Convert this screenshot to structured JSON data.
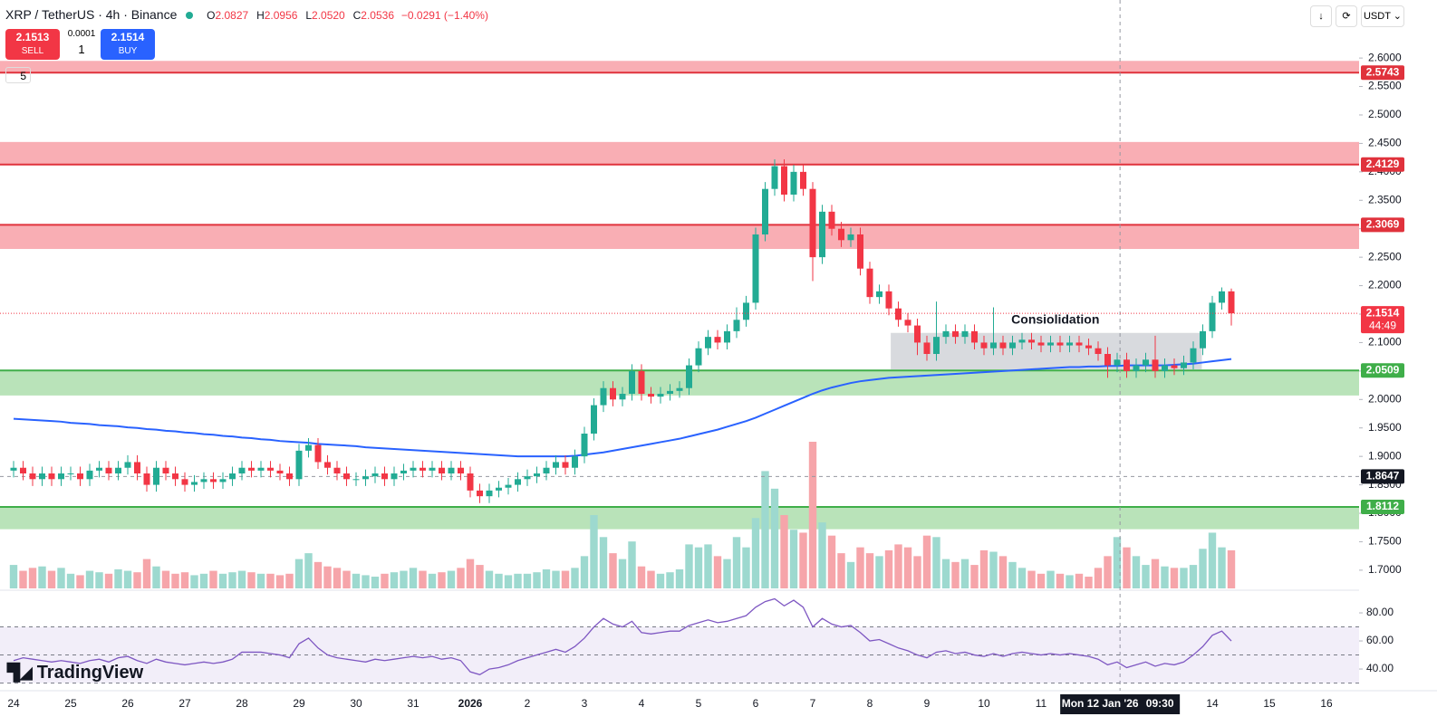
{
  "chart_data": {
    "type": "candlestick",
    "header": {
      "symbol": "XRP / TetherUS · 4h · Binance",
      "o_label": "O",
      "open": "2.0827",
      "h_label": "H",
      "high": "2.0956",
      "l_label": "L",
      "low": "2.0520",
      "c_label": "C",
      "close": "2.0536",
      "change": "−0.0291 (−1.40%)"
    },
    "trade": {
      "sell_price": "2.1513",
      "sell": "SELL",
      "step": "0.0001",
      "qty": "1",
      "buy_price": "2.1514",
      "buy": "BUY"
    },
    "indicators_collapsed": "5",
    "currency": "USDT",
    "brand": "TradingView",
    "up_color": "#22ab94",
    "down_color": "#f23645",
    "up_volume_color": "#9dd9cf",
    "down_volume_color": "#f6a5aa",
    "ma_color": "#2962ff",
    "rsi_color": "#7e57c2",
    "x_labels": [
      "24",
      "25",
      "26",
      "27",
      "28",
      "29",
      "30",
      "31",
      "2026",
      "2",
      "3",
      "4",
      "5",
      "6",
      "7",
      "8",
      "9",
      "10",
      "11",
      null,
      null,
      "14",
      "15",
      "16"
    ],
    "ylim": [
      1.668,
      2.702
    ],
    "yticks": [
      {
        "value": 1.7,
        "label": "1.7000"
      },
      {
        "value": 1.75,
        "label": "1.7500"
      },
      {
        "value": 1.8,
        "label": "1.8000"
      },
      {
        "value": 1.85,
        "label": "1.8500"
      },
      {
        "value": 1.9,
        "label": "1.9000"
      },
      {
        "value": 1.95,
        "label": "1.9500"
      },
      {
        "value": 2.0,
        "label": "2.0000"
      },
      {
        "value": 2.05,
        "label": "2.0500"
      },
      {
        "value": 2.1,
        "label": "2.1000"
      },
      {
        "value": 2.15,
        "label": "2.1500"
      },
      {
        "value": 2.2,
        "label": "2.2000"
      },
      {
        "value": 2.25,
        "label": "2.2500"
      },
      {
        "value": 2.3,
        "label": "2.3000"
      },
      {
        "value": 2.35,
        "label": "2.3500"
      },
      {
        "value": 2.4,
        "label": "2.4000"
      },
      {
        "value": 2.45,
        "label": "2.4500"
      },
      {
        "value": 2.5,
        "label": "2.5000"
      },
      {
        "value": 2.55,
        "label": "2.5500"
      },
      {
        "value": 2.6,
        "label": "2.6000"
      }
    ],
    "candles": [
      [
        1.875,
        1.892,
        1.863,
        1.88
      ],
      [
        1.88,
        1.892,
        1.858,
        1.87
      ],
      [
        1.87,
        1.882,
        1.848,
        1.86
      ],
      [
        1.86,
        1.882,
        1.848,
        1.87
      ],
      [
        1.87,
        1.882,
        1.848,
        1.86
      ],
      [
        1.86,
        1.882,
        1.848,
        1.87
      ],
      [
        1.87,
        1.882,
        1.858,
        1.87
      ],
      [
        1.87,
        1.882,
        1.848,
        1.86
      ],
      [
        1.86,
        1.887,
        1.848,
        1.875
      ],
      [
        1.875,
        1.892,
        1.863,
        1.88
      ],
      [
        1.88,
        1.892,
        1.858,
        1.87
      ],
      [
        1.87,
        1.892,
        1.858,
        1.88
      ],
      [
        1.88,
        1.902,
        1.868,
        1.89
      ],
      [
        1.89,
        1.902,
        1.858,
        1.87
      ],
      [
        1.87,
        1.882,
        1.838,
        1.85
      ],
      [
        1.85,
        1.892,
        1.838,
        1.88
      ],
      [
        1.88,
        1.892,
        1.858,
        1.87
      ],
      [
        1.87,
        1.882,
        1.848,
        1.86
      ],
      [
        1.86,
        1.872,
        1.838,
        1.85
      ],
      [
        1.85,
        1.867,
        1.838,
        1.855
      ],
      [
        1.855,
        1.872,
        1.843,
        1.86
      ],
      [
        1.86,
        1.872,
        1.843,
        1.855
      ],
      [
        1.855,
        1.872,
        1.843,
        1.86
      ],
      [
        1.86,
        1.882,
        1.848,
        1.87
      ],
      [
        1.87,
        1.892,
        1.858,
        1.88
      ],
      [
        1.88,
        1.892,
        1.863,
        1.875
      ],
      [
        1.875,
        1.892,
        1.863,
        1.88
      ],
      [
        1.88,
        1.892,
        1.863,
        1.875
      ],
      [
        1.875,
        1.887,
        1.858,
        1.87
      ],
      [
        1.87,
        1.882,
        1.848,
        1.86
      ],
      [
        1.86,
        1.922,
        1.848,
        1.91
      ],
      [
        1.91,
        1.932,
        1.898,
        1.92
      ],
      [
        1.92,
        1.932,
        1.878,
        1.89
      ],
      [
        1.89,
        1.902,
        1.868,
        1.88
      ],
      [
        1.88,
        1.892,
        1.858,
        1.87
      ],
      [
        1.87,
        1.882,
        1.848,
        1.86
      ],
      [
        1.86,
        1.872,
        1.848,
        1.86
      ],
      [
        1.86,
        1.877,
        1.848,
        1.865
      ],
      [
        1.865,
        1.882,
        1.853,
        1.87
      ],
      [
        1.87,
        1.882,
        1.848,
        1.86
      ],
      [
        1.86,
        1.882,
        1.848,
        1.87
      ],
      [
        1.87,
        1.887,
        1.858,
        1.875
      ],
      [
        1.875,
        1.892,
        1.863,
        1.88
      ],
      [
        1.88,
        1.892,
        1.863,
        1.875
      ],
      [
        1.875,
        1.892,
        1.863,
        1.88
      ],
      [
        1.88,
        1.892,
        1.858,
        1.87
      ],
      [
        1.87,
        1.892,
        1.858,
        1.88
      ],
      [
        1.88,
        1.892,
        1.858,
        1.87
      ],
      [
        1.87,
        1.882,
        1.828,
        1.84
      ],
      [
        1.84,
        1.852,
        1.818,
        1.83
      ],
      [
        1.83,
        1.852,
        1.818,
        1.84
      ],
      [
        1.84,
        1.857,
        1.828,
        1.845
      ],
      [
        1.845,
        1.862,
        1.833,
        1.85
      ],
      [
        1.85,
        1.872,
        1.838,
        1.86
      ],
      [
        1.86,
        1.877,
        1.848,
        1.865
      ],
      [
        1.865,
        1.882,
        1.853,
        1.87
      ],
      [
        1.87,
        1.892,
        1.858,
        1.88
      ],
      [
        1.88,
        1.902,
        1.868,
        1.89
      ],
      [
        1.89,
        1.902,
        1.868,
        1.88
      ],
      [
        1.88,
        1.912,
        1.868,
        1.9
      ],
      [
        1.9,
        1.952,
        1.888,
        1.94
      ],
      [
        1.94,
        2.002,
        1.928,
        1.99
      ],
      [
        1.99,
        2.032,
        1.978,
        2.02
      ],
      [
        2.02,
        2.032,
        1.988,
        2.0
      ],
      [
        2.0,
        2.022,
        1.988,
        2.01
      ],
      [
        2.01,
        2.062,
        1.998,
        2.05
      ],
      [
        2.05,
        2.062,
        1.998,
        2.01
      ],
      [
        2.01,
        2.022,
        1.993,
        2.005
      ],
      [
        2.005,
        2.022,
        1.993,
        2.01
      ],
      [
        2.01,
        2.027,
        1.998,
        2.015
      ],
      [
        2.015,
        2.032,
        2.003,
        2.02
      ],
      [
        2.02,
        2.072,
        2.008,
        2.06
      ],
      [
        2.06,
        2.102,
        2.048,
        2.09
      ],
      [
        2.09,
        2.122,
        2.078,
        2.11
      ],
      [
        2.11,
        2.122,
        2.088,
        2.1
      ],
      [
        2.1,
        2.132,
        2.088,
        2.12
      ],
      [
        2.12,
        2.162,
        2.108,
        2.14
      ],
      [
        2.14,
        2.182,
        2.128,
        2.17
      ],
      [
        2.17,
        2.302,
        2.158,
        2.29
      ],
      [
        2.29,
        2.382,
        2.278,
        2.37
      ],
      [
        2.37,
        2.422,
        2.358,
        2.41
      ],
      [
        2.41,
        2.422,
        2.348,
        2.36
      ],
      [
        2.36,
        2.412,
        2.348,
        2.4
      ],
      [
        2.4,
        2.412,
        2.358,
        2.37
      ],
      [
        2.37,
        2.382,
        2.208,
        2.25
      ],
      [
        2.25,
        2.342,
        2.238,
        2.33
      ],
      [
        2.33,
        2.342,
        2.288,
        2.3
      ],
      [
        2.3,
        2.312,
        2.268,
        2.28
      ],
      [
        2.28,
        2.302,
        2.268,
        2.29
      ],
      [
        2.29,
        2.302,
        2.218,
        2.23
      ],
      [
        2.23,
        2.242,
        2.168,
        2.18
      ],
      [
        2.18,
        2.202,
        2.168,
        2.19
      ],
      [
        2.19,
        2.202,
        2.148,
        2.16
      ],
      [
        2.16,
        2.172,
        2.128,
        2.14
      ],
      [
        2.14,
        2.152,
        2.118,
        2.13
      ],
      [
        2.13,
        2.142,
        2.078,
        2.1
      ],
      [
        2.1,
        2.112,
        2.068,
        2.08
      ],
      [
        2.08,
        2.172,
        2.068,
        2.11
      ],
      [
        2.11,
        2.132,
        2.098,
        2.12
      ],
      [
        2.12,
        2.132,
        2.098,
        2.11
      ],
      [
        2.11,
        2.132,
        2.098,
        2.12
      ],
      [
        2.12,
        2.132,
        2.088,
        2.1
      ],
      [
        2.1,
        2.112,
        2.078,
        2.09
      ],
      [
        2.09,
        2.162,
        2.078,
        2.1
      ],
      [
        2.1,
        2.112,
        2.078,
        2.09
      ],
      [
        2.09,
        2.112,
        2.078,
        2.1
      ],
      [
        2.1,
        2.117,
        2.088,
        2.105
      ],
      [
        2.105,
        2.117,
        2.088,
        2.1
      ],
      [
        2.1,
        2.112,
        2.083,
        2.095
      ],
      [
        2.095,
        2.112,
        2.083,
        2.1
      ],
      [
        2.1,
        2.112,
        2.083,
        2.095
      ],
      [
        2.095,
        2.112,
        2.083,
        2.1
      ],
      [
        2.1,
        2.112,
        2.083,
        2.095
      ],
      [
        2.095,
        2.107,
        2.078,
        2.09
      ],
      [
        2.09,
        2.102,
        2.068,
        2.08
      ],
      [
        2.08,
        2.092,
        2.038,
        2.06
      ],
      [
        2.06,
        2.082,
        2.048,
        2.07
      ],
      [
        2.07,
        2.082,
        2.038,
        2.05
      ],
      [
        2.05,
        2.072,
        2.038,
        2.06
      ],
      [
        2.06,
        2.082,
        2.048,
        2.07
      ],
      [
        2.07,
        2.112,
        2.038,
        2.05
      ],
      [
        2.05,
        2.072,
        2.038,
        2.06
      ],
      [
        2.06,
        2.072,
        2.043,
        2.055
      ],
      [
        2.055,
        2.077,
        2.043,
        2.065
      ],
      [
        2.065,
        2.102,
        2.053,
        2.09
      ],
      [
        2.09,
        2.132,
        2.078,
        2.12
      ],
      [
        2.12,
        2.182,
        2.108,
        2.17
      ],
      [
        2.17,
        2.197,
        2.158,
        2.19
      ],
      [
        2.19,
        2.195,
        2.13,
        2.1514
      ]
    ],
    "volumes": [
      16,
      12,
      14,
      15,
      12,
      14,
      10,
      9,
      12,
      11,
      10,
      13,
      12,
      11,
      20,
      15,
      12,
      10,
      11,
      9,
      10,
      12,
      10,
      11,
      12,
      11,
      10,
      10,
      9,
      10,
      20,
      24,
      18,
      15,
      14,
      12,
      10,
      9,
      8,
      10,
      11,
      12,
      14,
      12,
      10,
      11,
      12,
      14,
      20,
      16,
      12,
      10,
      9,
      10,
      10,
      11,
      13,
      12,
      12,
      14,
      22,
      50,
      35,
      24,
      20,
      32,
      15,
      12,
      10,
      11,
      13,
      30,
      28,
      30,
      22,
      20,
      35,
      28,
      48,
      80,
      68,
      50,
      40,
      38,
      100,
      45,
      36,
      24,
      18,
      28,
      24,
      22,
      26,
      30,
      28,
      22,
      36,
      35,
      20,
      18,
      20,
      16,
      26,
      25,
      22,
      18,
      14,
      12,
      10,
      12,
      10,
      9,
      10,
      8,
      14,
      22,
      35,
      28,
      22,
      16,
      20,
      15,
      14,
      14,
      16,
      27,
      38,
      28,
      26
    ],
    "ma": [
      1.966,
      1.965,
      1.964,
      1.963,
      1.962,
      1.961,
      1.959,
      1.958,
      1.957,
      1.955,
      1.954,
      1.953,
      1.951,
      1.95,
      1.948,
      1.947,
      1.945,
      1.944,
      1.942,
      1.941,
      1.939,
      1.938,
      1.936,
      1.935,
      1.933,
      1.932,
      1.93,
      1.929,
      1.927,
      1.926,
      1.925,
      1.924,
      1.922,
      1.921,
      1.92,
      1.919,
      1.918,
      1.916,
      1.915,
      1.914,
      1.913,
      1.912,
      1.911,
      1.91,
      1.909,
      1.908,
      1.907,
      1.906,
      1.905,
      1.904,
      1.903,
      1.902,
      1.901,
      1.9,
      1.9,
      1.9,
      1.9,
      1.9,
      1.9,
      1.901,
      1.903,
      1.905,
      1.907,
      1.91,
      1.913,
      1.916,
      1.919,
      1.922,
      1.925,
      1.928,
      1.931,
      1.935,
      1.939,
      1.943,
      1.947,
      1.952,
      1.957,
      1.962,
      1.968,
      1.975,
      1.982,
      1.989,
      1.996,
      2.003,
      2.01,
      2.016,
      2.021,
      2.025,
      2.029,
      2.032,
      2.034,
      2.036,
      2.038,
      2.039,
      2.04,
      2.041,
      2.042,
      2.043,
      2.044,
      2.045,
      2.046,
      2.047,
      2.048,
      2.049,
      2.05,
      2.051,
      2.052,
      2.053,
      2.054,
      2.055,
      2.056,
      2.057,
      2.057,
      2.058,
      2.058,
      2.059,
      2.059,
      2.06,
      2.06,
      2.06,
      2.06,
      2.06,
      2.061,
      2.062,
      2.063,
      2.065,
      2.067,
      2.069,
      2.071
    ],
    "rsi": [
      46,
      48,
      47,
      46,
      45,
      46,
      45,
      44,
      46,
      47,
      45,
      48,
      49,
      46,
      44,
      47,
      45,
      44,
      43,
      44,
      45,
      44,
      45,
      47,
      52,
      52,
      52,
      51,
      50,
      48,
      58,
      62,
      55,
      50,
      48,
      47,
      46,
      45,
      47,
      46,
      47,
      48,
      49,
      48,
      49,
      47,
      48,
      46,
      38,
      36,
      40,
      41,
      43,
      46,
      48,
      50,
      52,
      54,
      52,
      56,
      62,
      70,
      76,
      72,
      70,
      74,
      66,
      65,
      66,
      67,
      67,
      71,
      73,
      75,
      73,
      74,
      76,
      78,
      84,
      88,
      90,
      85,
      89,
      84,
      70,
      76,
      72,
      70,
      71,
      66,
      60,
      61,
      58,
      55,
      53,
      50,
      48,
      52,
      53,
      51,
      52,
      50,
      49,
      51,
      49,
      51,
      52,
      51,
      50,
      51,
      50,
      51,
      50,
      49,
      47,
      43,
      45,
      41,
      43,
      45,
      42,
      44,
      43,
      45,
      50,
      56,
      64,
      67,
      60
    ],
    "rsi_lim": [
      26.5,
      94.2
    ],
    "rsi_ticks": [
      {
        "value": 40,
        "label": "40.00"
      },
      {
        "value": 60,
        "label": "60.00"
      },
      {
        "value": 80,
        "label": "80.00"
      }
    ],
    "rsi_bands": [
      70,
      50,
      30
    ],
    "zones": [
      {
        "level": 2.5743,
        "edge": 2.595,
        "fill": "#f9aab0",
        "color": "#e0323c"
      },
      {
        "level": 2.4129,
        "edge": 2.4525,
        "fill": "#f9aab0",
        "color": "#e0323c"
      },
      {
        "level": 2.3069,
        "edge": 2.2645,
        "fill": "#f9aab0",
        "color": "#e0323c"
      },
      {
        "level": 2.0509,
        "edge": 2.007,
        "fill": "#b5e2b5",
        "color": "#3fae49"
      },
      {
        "level": 1.8112,
        "edge": 1.772,
        "fill": "#b5e2b5",
        "color": "#3fae49"
      }
    ],
    "box": {
      "label": "Consiolidation",
      "top": 2.117,
      "bottom": 2.053,
      "start": 92.2,
      "end": 124.9
    },
    "last_price": 2.1514,
    "countdown": "44:49",
    "crosshair": {
      "x": 116.3,
      "price": 1.8647,
      "date": "Mon 12 Jan '26",
      "time": "09:30"
    }
  }
}
